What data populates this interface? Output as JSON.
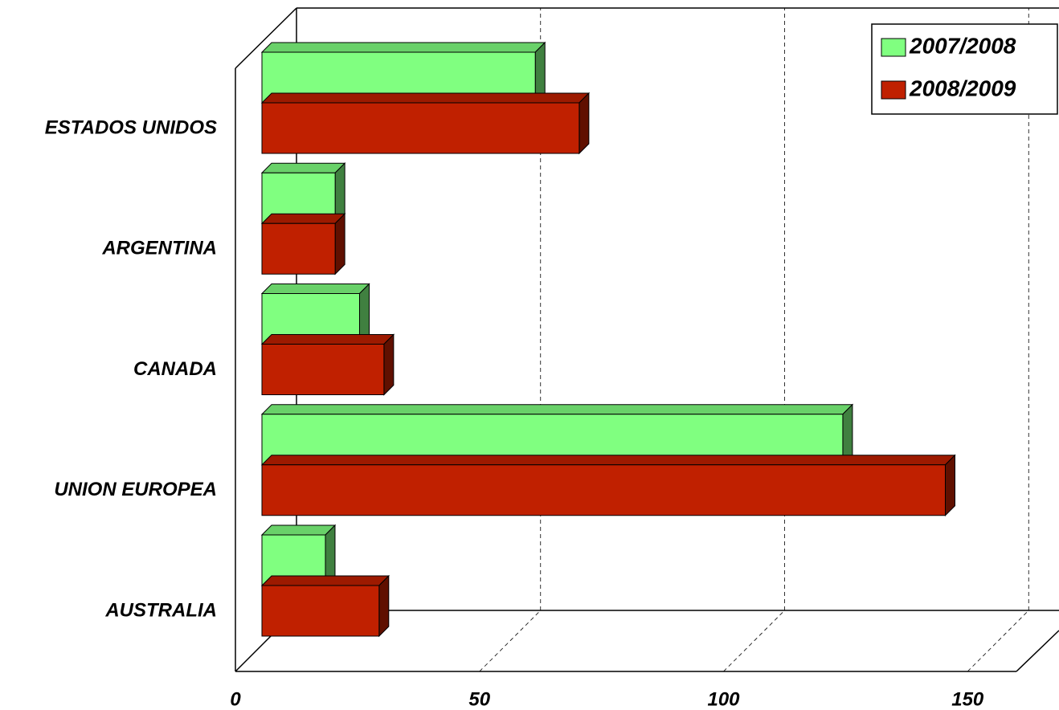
{
  "chart_data": {
    "type": "bar3d-horizontal",
    "categories": [
      "ESTADOS UNIDOS",
      "ARGENTINA",
      "CANADA",
      "UNION EUROPEA",
      "AUSTRALIA"
    ],
    "series": [
      {
        "name": "2007/2008",
        "color": "#80ff80",
        "values": [
          56,
          15,
          20,
          119,
          13
        ]
      },
      {
        "name": "2008/2009",
        "color": "#c02000",
        "values": [
          65,
          15,
          25,
          140,
          24
        ]
      }
    ],
    "xlim": [
      0,
      160
    ],
    "xticks": [
      0,
      50,
      100,
      150
    ],
    "grid": true,
    "legend": "top-right"
  }
}
